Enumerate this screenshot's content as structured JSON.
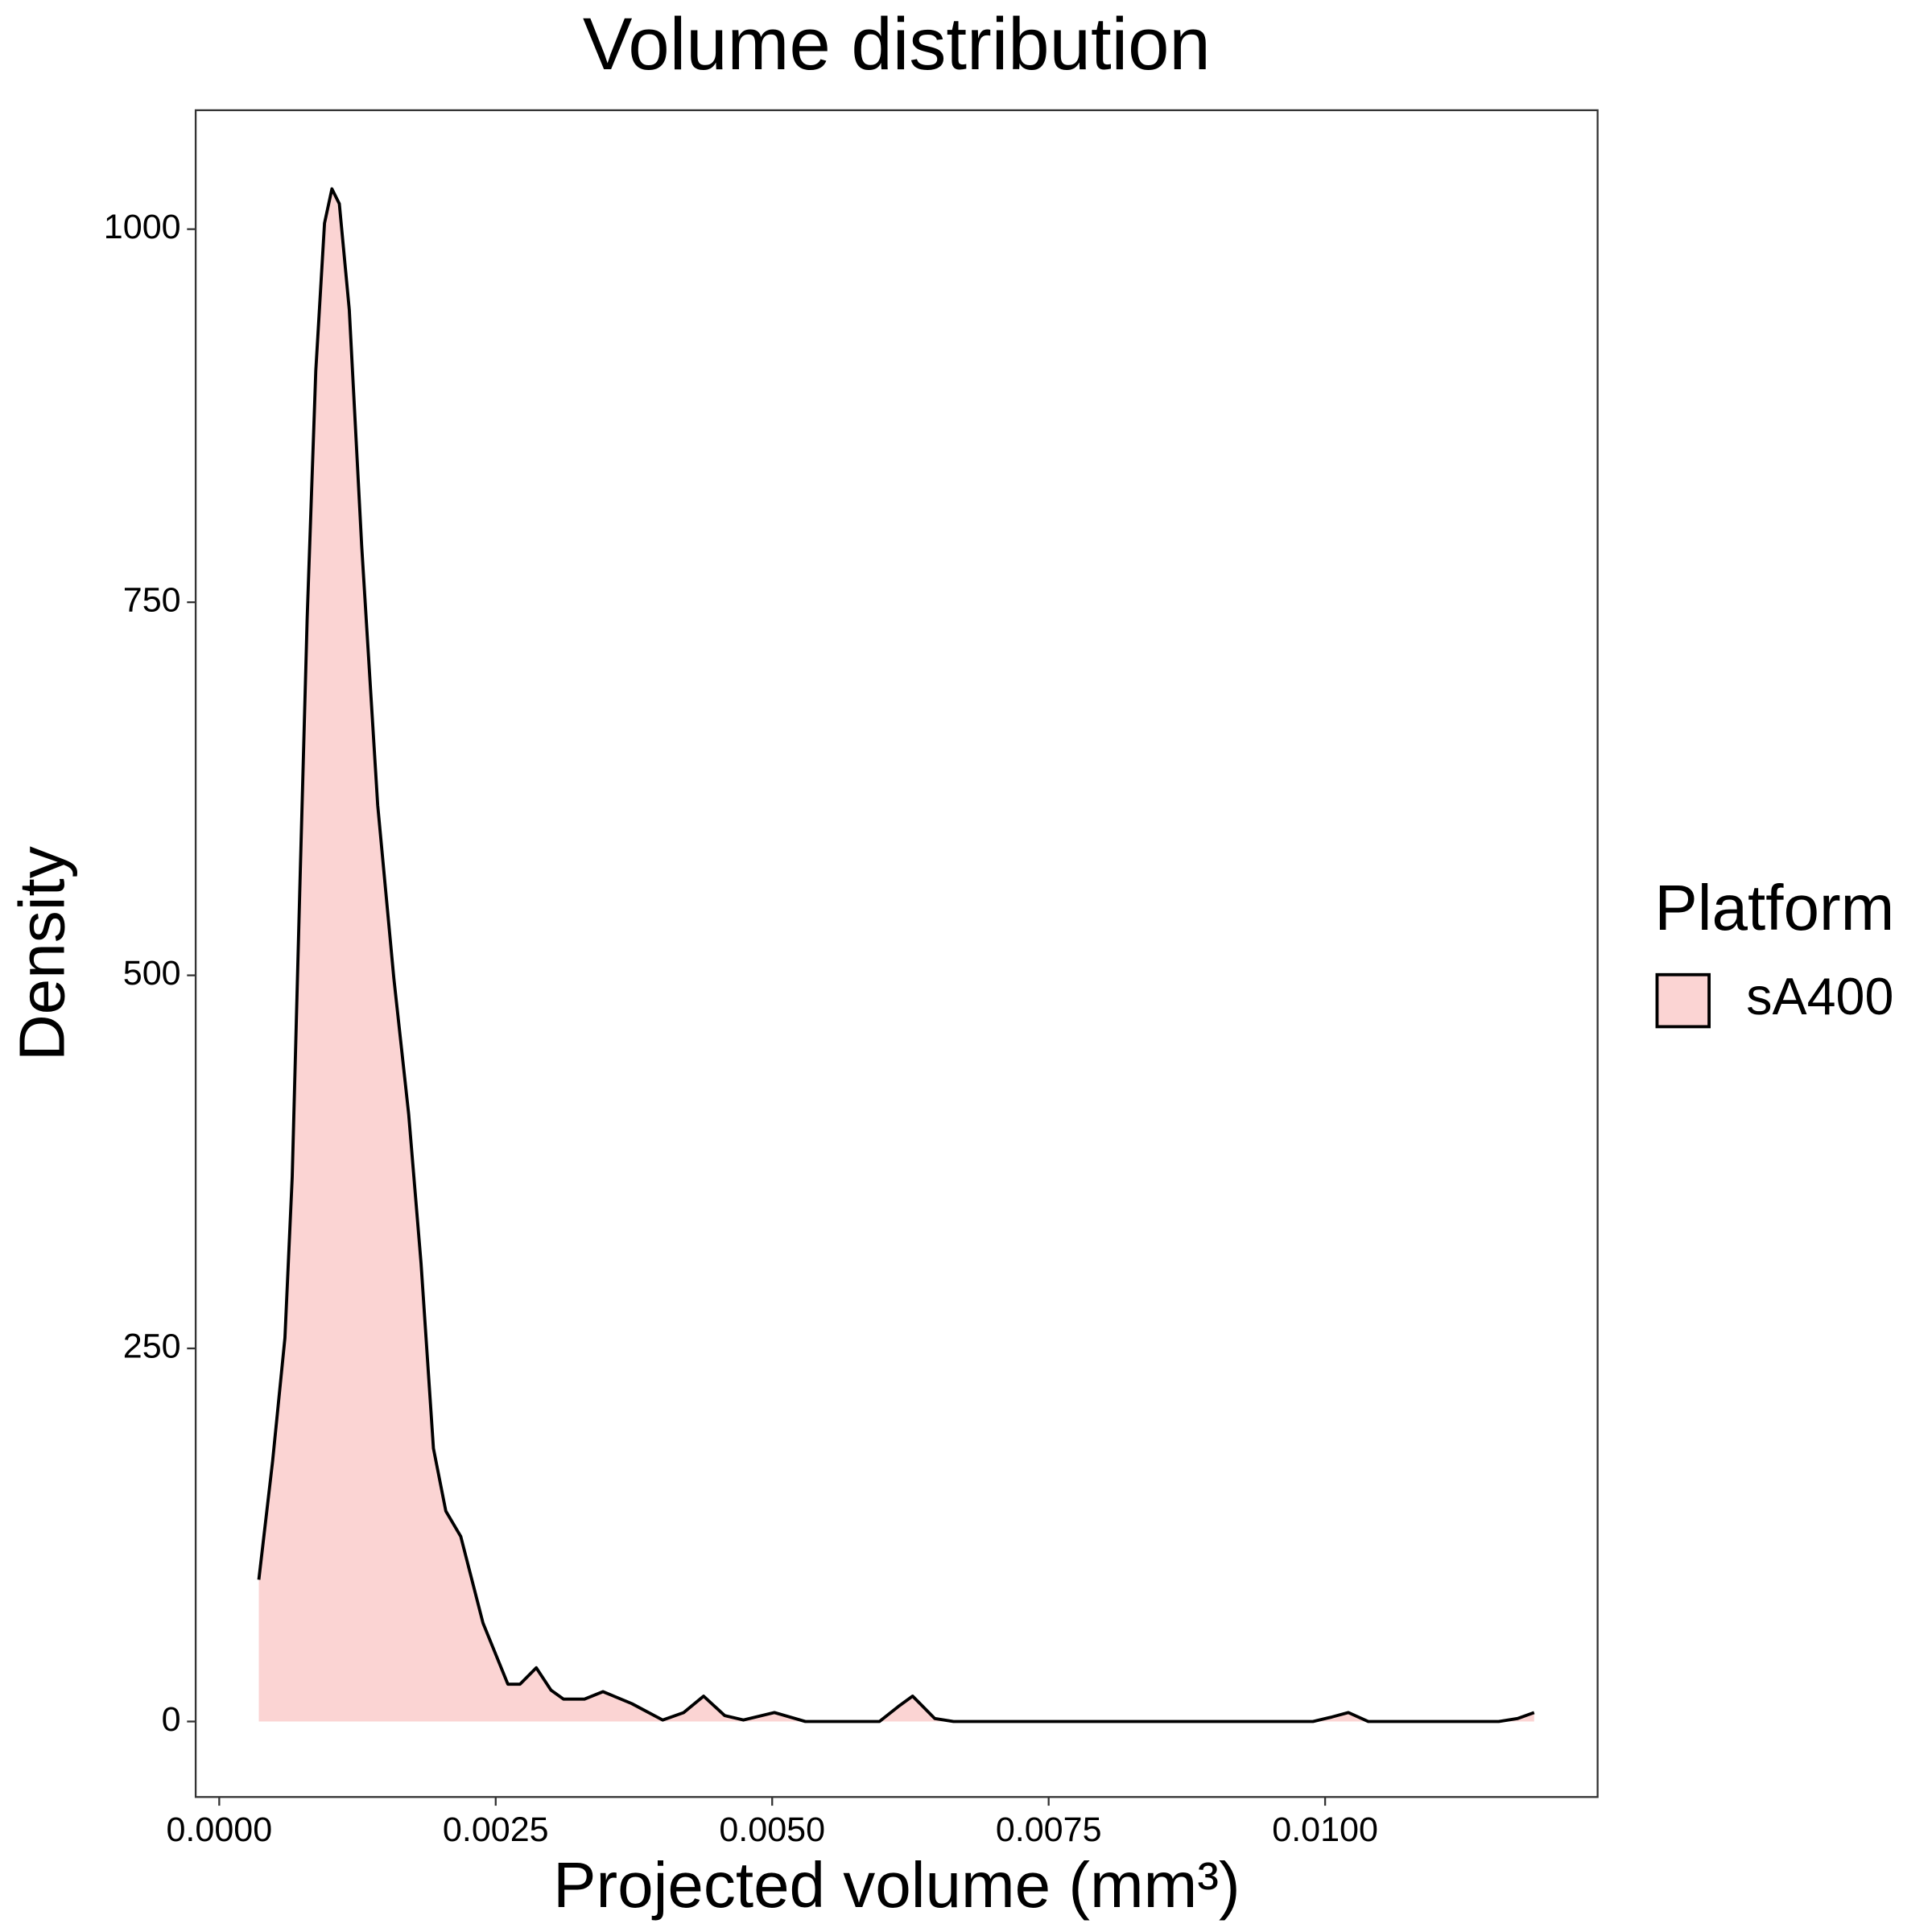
{
  "chart_data": {
    "type": "area",
    "title": "Volume distribution",
    "x_label": "Projected volume (mm³)",
    "y_label": "Density",
    "legend_title": "Platform",
    "legend": "right",
    "xlim": [
      -0.000213,
      0.012464
    ],
    "ylim": [
      -50.6,
      1079.7
    ],
    "xticks": [
      {
        "value": 0,
        "label": "0.0000"
      },
      0.0025,
      {
        "value": 0.005,
        "label": "0.0050"
      },
      0.0075,
      {
        "value": 0.01,
        "label": "0.0100"
      }
    ],
    "yticks": [
      0,
      250,
      500,
      750,
      1000
    ],
    "grid": false,
    "x": [
      0.000358,
      0.000482,
      0.000594,
      0.00066,
      0.000728,
      0.000795,
      0.000873,
      0.000952,
      0.001019,
      0.001086,
      0.001176,
      0.001288,
      0.001433,
      0.001579,
      0.001713,
      0.001825,
      0.001937,
      0.002049,
      0.002184,
      0.002385,
      0.00261,
      0.00272,
      0.002867,
      0.003,
      0.003113,
      0.003303,
      0.00347,
      0.00373,
      0.00401,
      0.0042,
      0.00438,
      0.00457,
      0.00474,
      0.00502,
      0.0053,
      0.00597,
      0.00614,
      0.00627,
      0.00647,
      0.00664,
      0.00989,
      0.01006,
      0.01021,
      0.01039,
      0.01157,
      0.01174,
      0.01189
    ],
    "series": [
      {
        "name": "sA400",
        "color": "#fbd4d3",
        "line_color": "#000000",
        "values": [
          95,
          174,
          257,
          365,
          556,
          739,
          905,
          1004,
          1027,
          1017,
          946,
          788,
          614,
          498,
          407,
          307,
          183,
          141,
          124,
          66,
          25,
          25,
          36,
          21,
          15,
          15,
          20,
          12,
          1,
          6,
          17,
          4,
          1,
          6,
          0,
          0,
          10,
          17,
          2,
          0,
          0,
          3,
          6,
          0,
          0,
          2,
          6
        ]
      }
    ]
  }
}
